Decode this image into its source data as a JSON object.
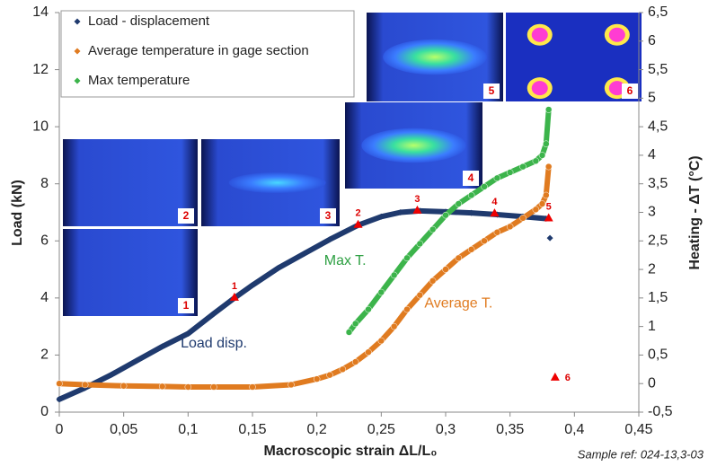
{
  "chart_data": {
    "type": "scatter",
    "xlabel": "Macroscopic strain ΔL/L₀",
    "ylabel": "Load (kN)",
    "y2label": "Heating - ΔT (°C)",
    "note": "Sample ref: 024-13,3-03",
    "xlim": [
      0,
      0.45
    ],
    "xticks": [
      0,
      {
        "value": 0.05,
        "label": "0,05"
      },
      {
        "value": 0.1,
        "label": "0,1"
      },
      {
        "value": 0.15,
        "label": "0,15"
      },
      {
        "value": 0.2,
        "label": "0,2"
      },
      {
        "value": 0.25,
        "label": "0,25"
      },
      {
        "value": 0.3,
        "label": "0,3"
      },
      {
        "value": 0.35,
        "label": "0,35"
      },
      {
        "value": 0.4,
        "label": "0,4"
      },
      {
        "value": 0.45,
        "label": "0,45"
      }
    ],
    "ylim": [
      0,
      14
    ],
    "yticks": [
      0,
      2,
      4,
      6,
      8,
      10,
      12,
      14
    ],
    "y2lim": [
      -0.5,
      6.5
    ],
    "y2ticks": [
      {
        "value": -0.5,
        "label": "-0,5"
      },
      0,
      {
        "value": 0.5,
        "label": "0,5"
      },
      1,
      {
        "value": 1.5,
        "label": "1,5"
      },
      2,
      {
        "value": 2.5,
        "label": "2,5"
      },
      3,
      {
        "value": 3.5,
        "label": "3,5"
      },
      4,
      {
        "value": 4.5,
        "label": "4,5"
      },
      5,
      {
        "value": 5.5,
        "label": "5,5"
      },
      6,
      {
        "value": 6.5,
        "label": "6,5"
      }
    ],
    "series": [
      {
        "name": "Load - displacement",
        "color": "#1f3a6e",
        "marker": "diamond",
        "x": [
          0,
          0.02,
          0.04,
          0.06,
          0.08,
          0.1,
          0.12,
          0.136,
          0.15,
          0.17,
          0.19,
          0.21,
          0.232,
          0.25,
          0.265,
          0.28,
          0.3,
          0.32,
          0.34,
          0.36,
          0.378,
          null,
          0.381
        ],
        "values": [
          0.45,
          0.85,
          1.3,
          1.8,
          2.3,
          2.75,
          3.45,
          4.0,
          4.45,
          5.05,
          5.55,
          6.05,
          6.55,
          6.85,
          7.0,
          7.05,
          7.02,
          6.98,
          6.92,
          6.85,
          6.78,
          null,
          6.1
        ]
      },
      {
        "name": "Average temperature in gage section",
        "color": "#e07b20",
        "marker": "circle",
        "axis": "y2",
        "x": [
          0,
          0.02,
          0.05,
          0.08,
          0.1,
          0.12,
          0.15,
          0.18,
          0.2,
          0.21,
          0.22,
          0.23,
          0.24,
          0.25,
          0.26,
          0.27,
          0.28,
          0.29,
          0.3,
          0.31,
          0.32,
          0.33,
          0.34,
          0.35,
          0.36,
          0.37,
          0.375,
          0.378,
          0.38
        ],
        "values": [
          0,
          -0.02,
          -0.04,
          -0.05,
          -0.06,
          -0.06,
          -0.06,
          -0.02,
          0.08,
          0.15,
          0.25,
          0.38,
          0.55,
          0.75,
          1.0,
          1.3,
          1.55,
          1.8,
          2.0,
          2.2,
          2.35,
          2.5,
          2.65,
          2.75,
          2.9,
          3.05,
          3.15,
          3.3,
          3.8
        ]
      },
      {
        "name": "Max temperature",
        "color": "#3cb44b",
        "marker": "circle",
        "axis": "y2",
        "x": [
          0.225,
          0.23,
          0.24,
          0.25,
          0.26,
          0.27,
          0.28,
          0.29,
          0.3,
          0.31,
          0.32,
          0.33,
          0.34,
          0.35,
          0.36,
          0.37,
          0.375,
          0.378,
          0.38
        ],
        "values": [
          0.9,
          1.05,
          1.3,
          1.6,
          1.9,
          2.2,
          2.45,
          2.7,
          2.95,
          3.15,
          3.3,
          3.45,
          3.6,
          3.7,
          3.8,
          3.9,
          4.0,
          4.2,
          4.8
        ]
      }
    ],
    "annotations": [
      {
        "text": "Load disp.",
        "x": 0.12,
        "y": 2.4,
        "color": "#1f3a6e"
      },
      {
        "text": "Max T.",
        "x": 0.222,
        "y": 5.3,
        "color": "#2ea043"
      },
      {
        "text": "Average T.",
        "x": 0.31,
        "y": 3.8,
        "color": "#e07b20"
      }
    ],
    "markers": [
      {
        "text": "1",
        "x": 0.136,
        "y": 4.0
      },
      {
        "text": "2",
        "x": 0.232,
        "y": 6.55
      },
      {
        "text": "3",
        "x": 0.278,
        "y": 7.05
      },
      {
        "text": "4",
        "x": 0.338,
        "y": 6.95
      },
      {
        "text": "5",
        "x": 0.38,
        "y": 6.78
      },
      {
        "text": "6",
        "x": 0.385,
        "y": 1.2
      }
    ],
    "image_labels": [
      "1",
      "2",
      "3",
      "4",
      "5",
      "6"
    ]
  }
}
